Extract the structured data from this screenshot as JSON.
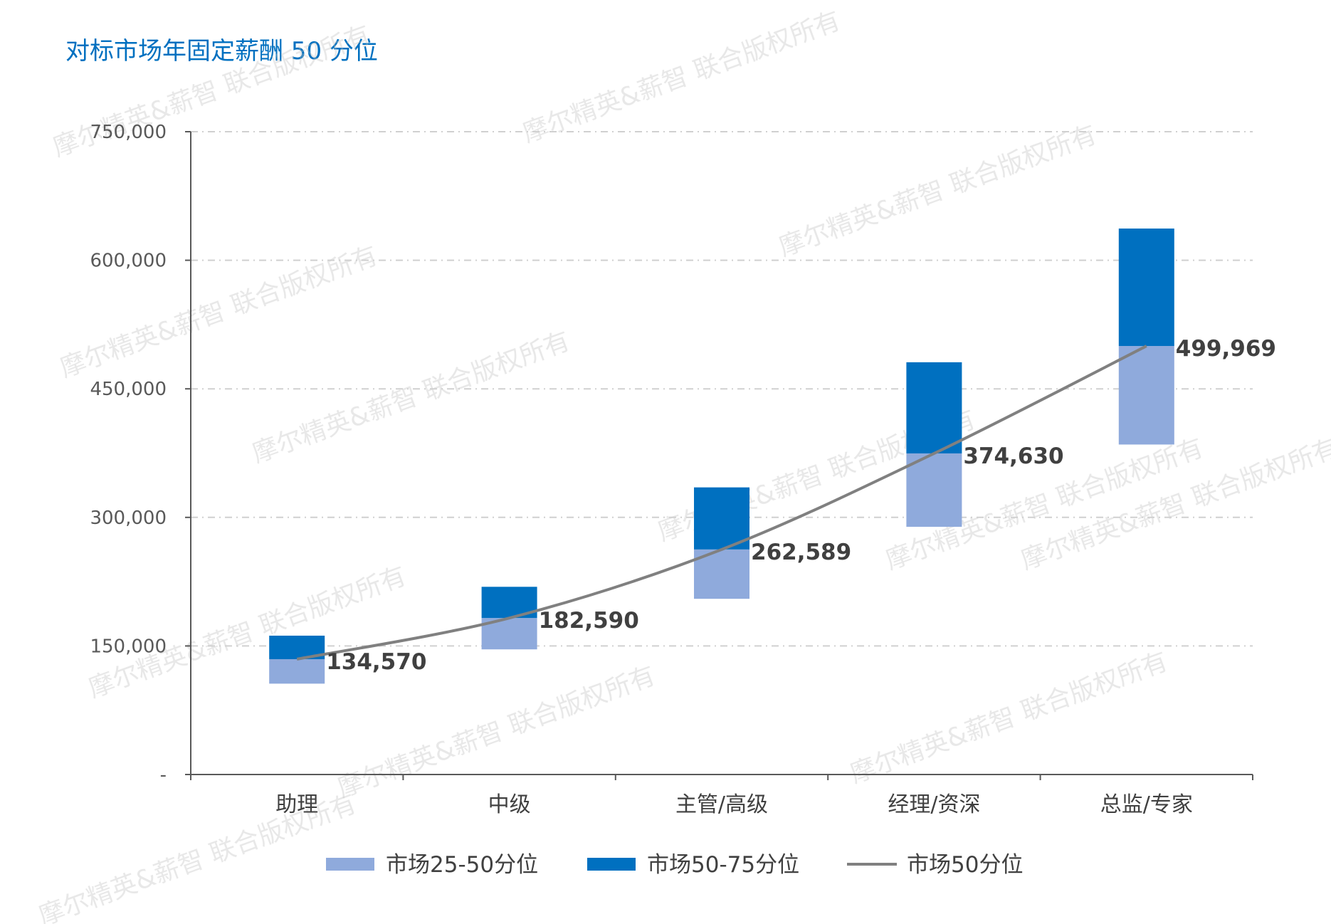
{
  "chart_data": {
    "type": "bar",
    "title": "对标市场年固定薪酬 50 分位",
    "categories": [
      "助理",
      "中级",
      "主管/高级",
      "经理/资深",
      "总监/专家"
    ],
    "series": [
      {
        "name": "市场25-50分位",
        "kind": "stacked-bar",
        "color": "#8faadc",
        "low": [
          106000,
          146000,
          205000,
          289000,
          385000
        ],
        "high": [
          134570,
          182590,
          262589,
          374630,
          499969
        ]
      },
      {
        "name": "市场50-75分位",
        "kind": "stacked-bar",
        "color": "#0070c0",
        "low": [
          134570,
          182590,
          262589,
          374630,
          499969
        ],
        "high": [
          162000,
          219000,
          335000,
          481000,
          637000
        ]
      },
      {
        "name": "市场50分位",
        "kind": "line",
        "color": "#808080",
        "values": [
          134570,
          182590,
          262589,
          374630,
          499969
        ]
      }
    ],
    "data_labels": [
      "134,570",
      "182,590",
      "262,589",
      "374,630",
      "499,969"
    ],
    "ylim": [
      0,
      750000
    ],
    "yticks": [
      0,
      150000,
      300000,
      450000,
      600000,
      750000
    ],
    "ytick_labels": [
      "-",
      "150,000",
      "300,000",
      "450,000",
      "600,000",
      "750,000"
    ],
    "grid": true,
    "legend_position": "bottom",
    "watermark": "摩尔精英&薪智 联合版权所有"
  }
}
